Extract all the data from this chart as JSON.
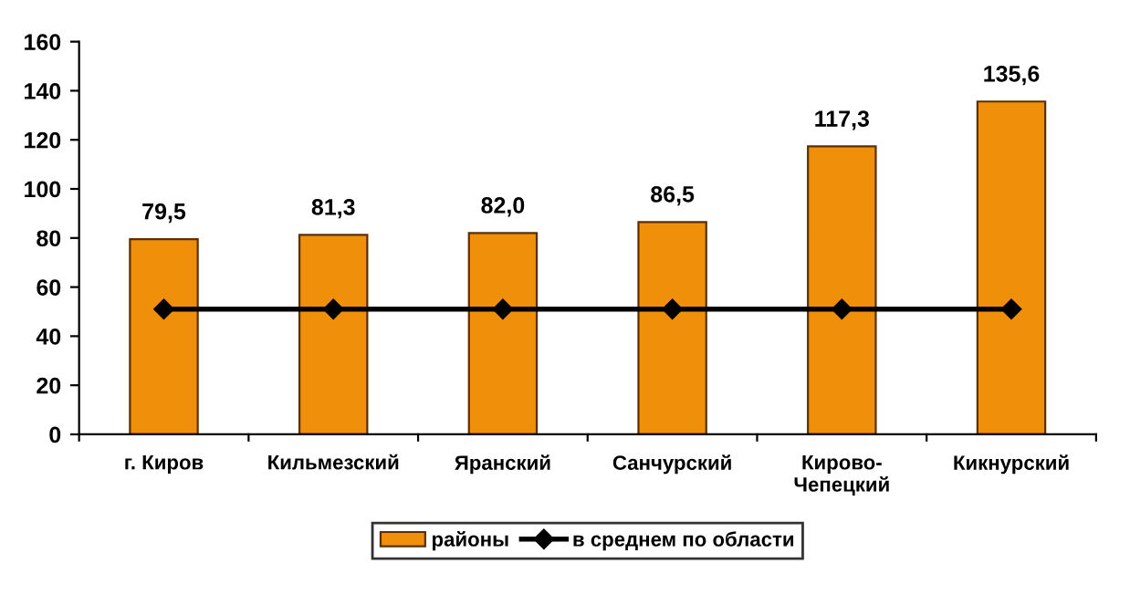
{
  "chart_data": {
    "type": "bar",
    "categories": [
      "г. Киров",
      "Кильмезский",
      "Яранский",
      "Санчурский",
      "Кирово-\nЧепецкий",
      "Кикнурский"
    ],
    "series": [
      {
        "name": "районы",
        "color": "#f0900a",
        "values": [
          79.5,
          81.3,
          82.0,
          86.5,
          117.3,
          135.6
        ],
        "value_labels": [
          "79,5",
          "81,3",
          "82,0",
          "86,5",
          "117,3",
          "135,6"
        ]
      },
      {
        "name": "в среднем по области",
        "type": "line",
        "color": "#000000",
        "marker": "diamond",
        "line_style": "solid",
        "values": [
          51,
          51,
          51,
          51,
          51,
          51
        ]
      }
    ],
    "ylim": [
      0,
      160
    ],
    "yticks": [
      0,
      20,
      40,
      60,
      80,
      100,
      120,
      140,
      160
    ],
    "grid": false,
    "legend": "bottom"
  }
}
